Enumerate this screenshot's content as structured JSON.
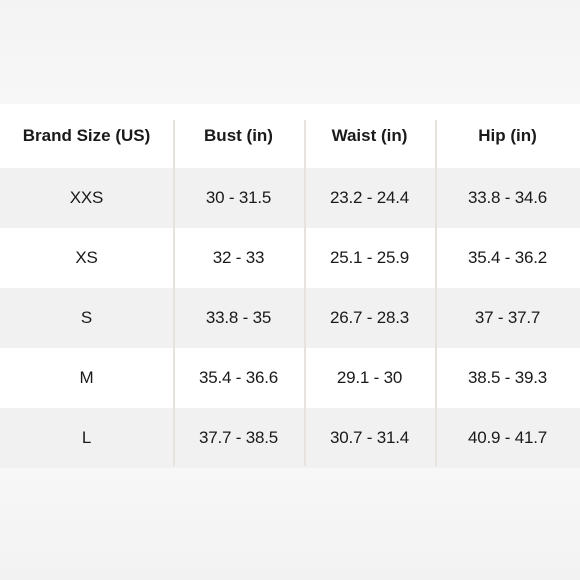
{
  "size_chart": {
    "headers": [
      "Brand Size (US)",
      "Bust (in)",
      "Waist (in)",
      "Hip (in)"
    ],
    "rows": [
      [
        "XXS",
        "30 - 31.5",
        "23.2 - 24.4",
        "33.8 - 34.6"
      ],
      [
        "XS",
        "32 - 33",
        "25.1 - 25.9",
        "35.4 - 36.2"
      ],
      [
        "S",
        "33.8 - 35",
        "26.7 - 28.3",
        "37 - 37.7"
      ],
      [
        "M",
        "35.4 - 36.6",
        "29.1 - 30",
        "38.5 - 39.3"
      ],
      [
        "L",
        "37.7 - 38.5",
        "30.7 - 31.4",
        "40.9 - 41.7"
      ]
    ]
  },
  "colors": {
    "shaded_row": "#f1f1f1",
    "divider": "#e6e2dd",
    "text": "#1a1a1a"
  }
}
